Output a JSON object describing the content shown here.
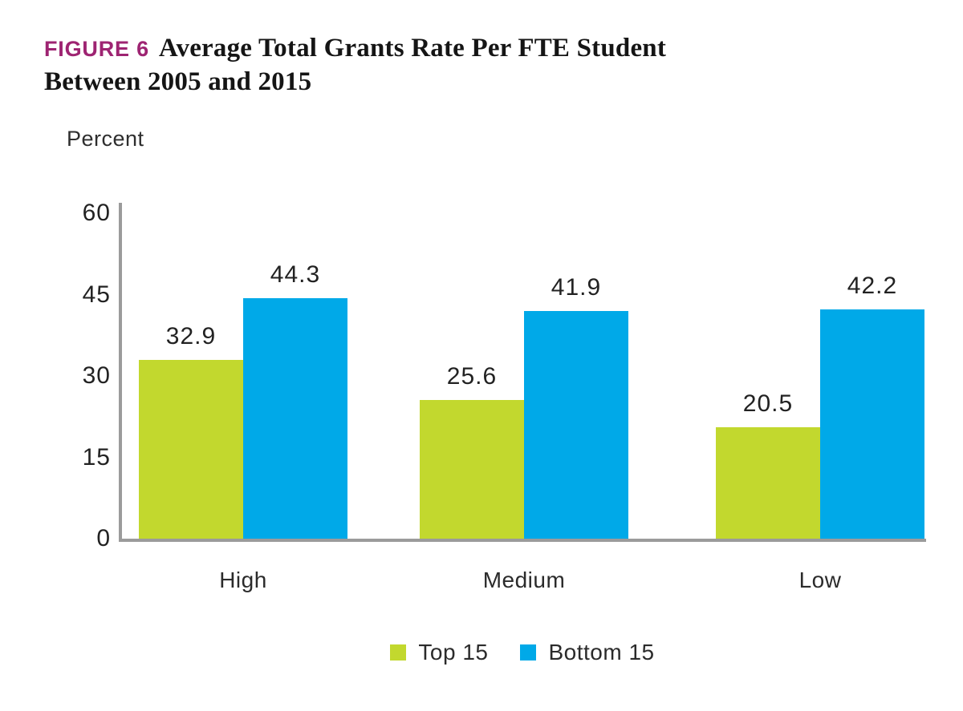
{
  "header": {
    "figure_label": "FIGURE 6",
    "title_line1": "Average Total Grants Rate Per FTE Student",
    "title_line2": "Between 2005 and 2015"
  },
  "axis": {
    "ylabel": "Percent"
  },
  "colors": {
    "figure_label": "#9E2472",
    "top15_green": "#C2D82E",
    "bottom15_blue": "#00A9E8",
    "axis_line": "#9B9B9B",
    "text": "#2B2B2B"
  },
  "chart_data": {
    "type": "bar",
    "title": "Average Total Grants Rate Per FTE Student Between 2005 and 2015",
    "figure_label": "FIGURE 6",
    "ylabel": "Percent",
    "xlabel": "",
    "categories": [
      "High",
      "Medium",
      "Low"
    ],
    "series": [
      {
        "name": "Top 15",
        "color": "#C2D82E",
        "values": [
          32.9,
          25.6,
          20.5
        ]
      },
      {
        "name": "Bottom 15",
        "color": "#00A9E8",
        "values": [
          44.3,
          41.9,
          42.2
        ]
      }
    ],
    "yticks": [
      0,
      15,
      30,
      45,
      60
    ],
    "ylim": [
      0,
      62
    ],
    "grid": false,
    "legend_position": "bottom",
    "value_labels": true
  }
}
